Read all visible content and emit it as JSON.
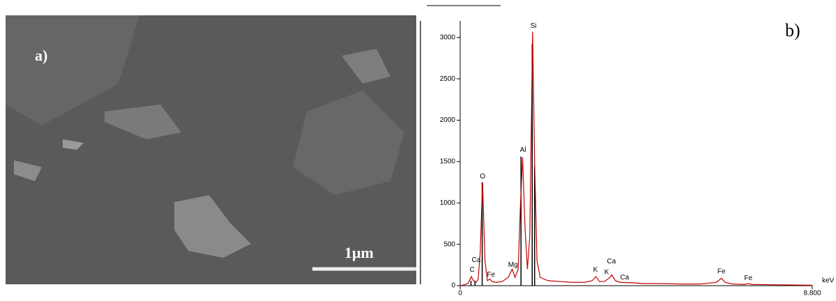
{
  "panel_a": {
    "label": "a)",
    "scale_bar": "1μm"
  },
  "chart_data": {
    "type": "line",
    "panel_label": "b)",
    "xlabel": "keV",
    "xlim": [
      0,
      8.8
    ],
    "xticks": [
      0,
      {
        "value": 8.8,
        "label": "8.800"
      }
    ],
    "ylim": [
      0,
      3200
    ],
    "yticks": [
      0,
      500,
      1000,
      1500,
      2000,
      2500,
      3000
    ],
    "color": "#c00000",
    "x": [
      0,
      0.1,
      0.2,
      0.28,
      0.33,
      0.4,
      0.45,
      0.5,
      0.56,
      0.62,
      0.68,
      0.74,
      0.8,
      0.9,
      1.05,
      1.2,
      1.3,
      1.37,
      1.45,
      1.5,
      1.56,
      1.62,
      1.68,
      1.74,
      1.81,
      1.86,
      1.92,
      2.0,
      2.2,
      2.5,
      2.8,
      3.1,
      3.3,
      3.39,
      3.48,
      3.6,
      3.72,
      3.79,
      3.88,
      4.0,
      4.3,
      4.6,
      5.0,
      5.5,
      6.0,
      6.4,
      6.53,
      6.62,
      6.8,
      7.1,
      7.2,
      7.3,
      8.0,
      8.8
    ],
    "values": [
      0,
      10,
      30,
      110,
      60,
      40,
      80,
      400,
      1250,
      300,
      60,
      80,
      50,
      40,
      50,
      100,
      200,
      100,
      200,
      900,
      1550,
      700,
      200,
      600,
      3070,
      1500,
      300,
      100,
      60,
      50,
      40,
      40,
      60,
      110,
      50,
      50,
      90,
      130,
      60,
      40,
      35,
      25,
      25,
      20,
      20,
      40,
      90,
      40,
      20,
      15,
      25,
      15,
      10,
      5
    ],
    "marker_lines": {
      "color": "#000000",
      "x": [
        0.27,
        0.37,
        0.55,
        1.52,
        1.8,
        1.86
      ],
      "values": [
        60,
        60,
        1250,
        1560,
        2920,
        1450
      ]
    },
    "annotations": [
      {
        "text": "C",
        "x": 0.3,
        "y": 190
      },
      {
        "text": "Ca",
        "x": 0.4,
        "y": 310
      },
      {
        "text": "O",
        "x": 0.56,
        "y": 1320
      },
      {
        "text": "Fe",
        "x": 0.77,
        "y": 130
      },
      {
        "text": "Mg",
        "x": 1.32,
        "y": 250
      },
      {
        "text": "Al",
        "x": 1.57,
        "y": 1640
      },
      {
        "text": "Si",
        "x": 1.83,
        "y": 3140
      },
      {
        "text": "K",
        "x": 3.38,
        "y": 190
      },
      {
        "text": "Ca",
        "x": 3.78,
        "y": 290
      },
      {
        "text": "K",
        "x": 3.66,
        "y": 160
      },
      {
        "text": "Ca",
        "x": 4.11,
        "y": 100
      },
      {
        "text": "Fe",
        "x": 6.53,
        "y": 170
      },
      {
        "text": "Fe",
        "x": 7.2,
        "y": 90
      }
    ]
  }
}
